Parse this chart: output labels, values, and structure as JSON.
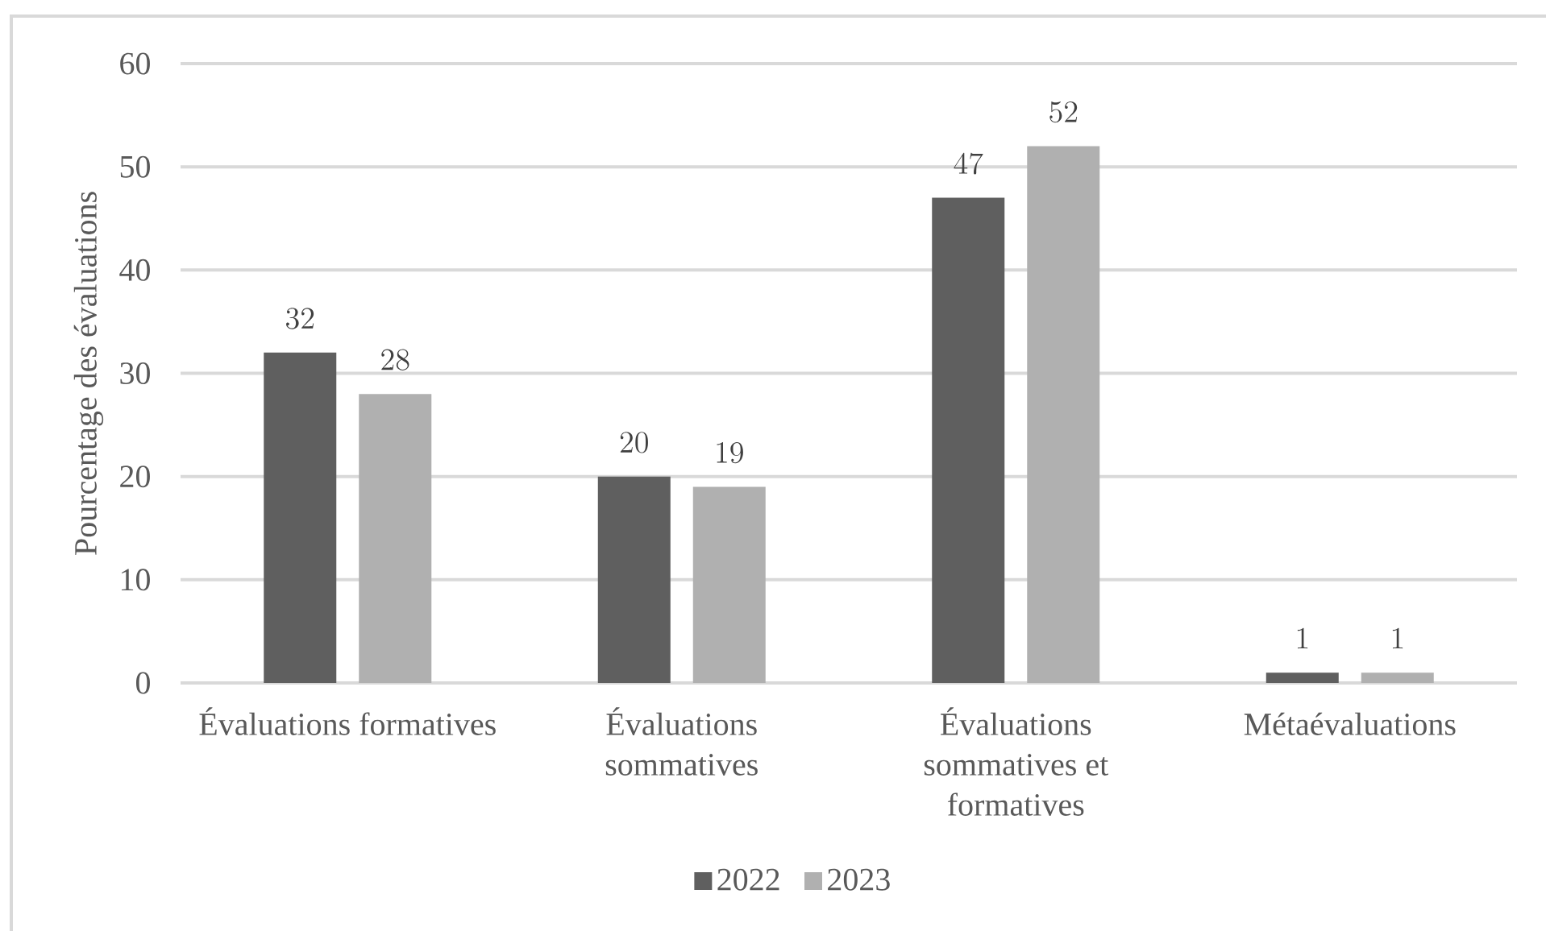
{
  "chart_data": {
    "type": "bar",
    "categories": [
      "Évaluations formatives",
      "Évaluations sommatives",
      "Évaluations sommatives et formatives",
      "Métaévaluations"
    ],
    "series": [
      {
        "name": "2022",
        "color": "#5f5f5f",
        "values": [
          32,
          20,
          47,
          1
        ]
      },
      {
        "name": "2023",
        "color": "#b0b0b0",
        "values": [
          28,
          19,
          52,
          1
        ]
      }
    ],
    "ylabel": "Pourcentage des évaluations",
    "ylim": [
      0,
      60
    ],
    "yticks": [
      0,
      10,
      20,
      30,
      40,
      50,
      60
    ],
    "grid": "y",
    "legend": "bottom",
    "data_labels": true
  }
}
